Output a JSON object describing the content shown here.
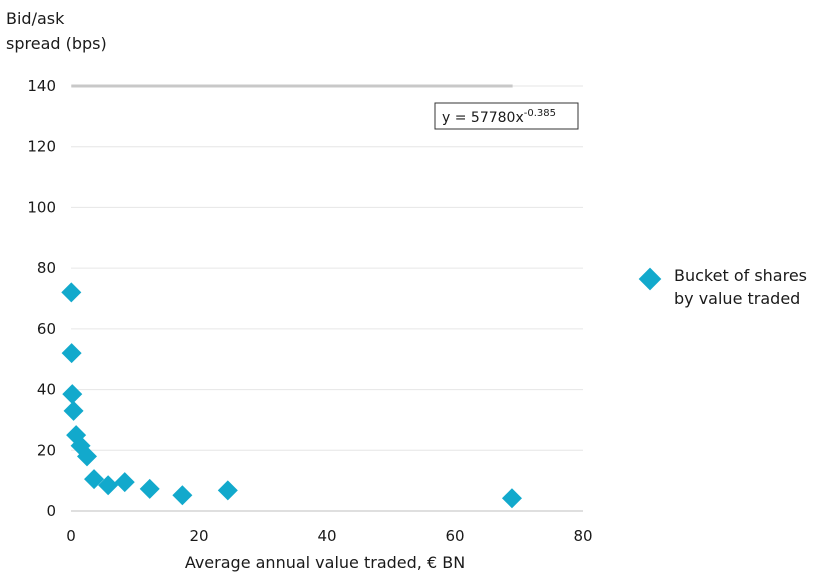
{
  "chart_data": {
    "type": "scatter",
    "ylabel_lines": [
      "Bid/ask",
      "spread (bps)"
    ],
    "xlabel": "Average annual value traded, € BN",
    "xlim": [
      0,
      80
    ],
    "ylim": [
      0,
      140
    ],
    "xticks": [
      0,
      20,
      40,
      60,
      80
    ],
    "yticks": [
      0,
      20,
      40,
      60,
      80,
      100,
      120,
      140
    ],
    "grid": "horizontal",
    "legend_position": "right",
    "series": [
      {
        "name": "Bucket of shares by value traded",
        "color": "#12a9cc",
        "marker": "diamond",
        "points": [
          {
            "x": 0.05,
            "y": 72
          },
          {
            "x": 0.1,
            "y": 52
          },
          {
            "x": 0.2,
            "y": 38.5
          },
          {
            "x": 0.4,
            "y": 33
          },
          {
            "x": 0.8,
            "y": 25
          },
          {
            "x": 1.5,
            "y": 21.5
          },
          {
            "x": 2.5,
            "y": 18
          },
          {
            "x": 3.6,
            "y": 10.5
          },
          {
            "x": 5.8,
            "y": 8.5
          },
          {
            "x": 8.4,
            "y": 9.5
          },
          {
            "x": 12.3,
            "y": 7.3
          },
          {
            "x": 17.4,
            "y": 5.2
          },
          {
            "x": 24.5,
            "y": 6.8
          },
          {
            "x": 68.9,
            "y": 4.2
          }
        ]
      }
    ],
    "trendline": {
      "color": "#c8c8c8",
      "coefficient": 57780,
      "exponent": -0.385,
      "x_from": 0.05,
      "x_to": 69,
      "equation_main": "y = 57780x",
      "equation_exp": "-0.385",
      "label_position": "top-right"
    },
    "legend_label_lines": [
      "Bucket of shares",
      "by value traded"
    ]
  }
}
